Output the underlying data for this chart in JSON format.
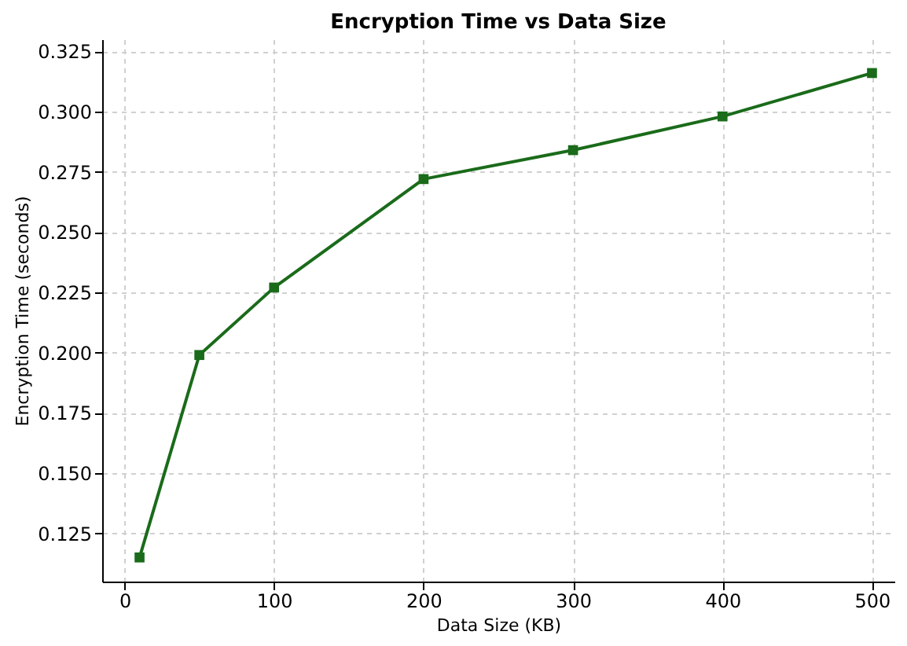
{
  "chart_data": {
    "type": "line",
    "title": "Encryption Time vs Data Size",
    "xlabel": "Data Size (KB)",
    "ylabel": "Encryption Time (seconds)",
    "x": [
      10,
      50,
      100,
      200,
      300,
      400,
      500
    ],
    "series": [
      {
        "color": "#1a6b1a",
        "values": [
          0.115,
          0.199,
          0.227,
          0.272,
          0.284,
          0.298,
          0.316
        ]
      }
    ],
    "xlim": [
      -15,
      515
    ],
    "xticks": [
      0,
      100,
      200,
      300,
      400,
      500
    ],
    "ylim": [
      0.105,
      0.33
    ],
    "yticks": [
      0.125,
      {
        "value": 0.15,
        "label": "0.150"
      },
      0.175,
      {
        "value": 0.2,
        "label": "0.200"
      },
      0.225,
      {
        "value": 0.25,
        "label": "0.250"
      },
      0.275,
      {
        "value": 0.3,
        "label": "0.300"
      },
      0.325
    ],
    "grid": true,
    "marker": "square",
    "line_style": "solid"
  }
}
